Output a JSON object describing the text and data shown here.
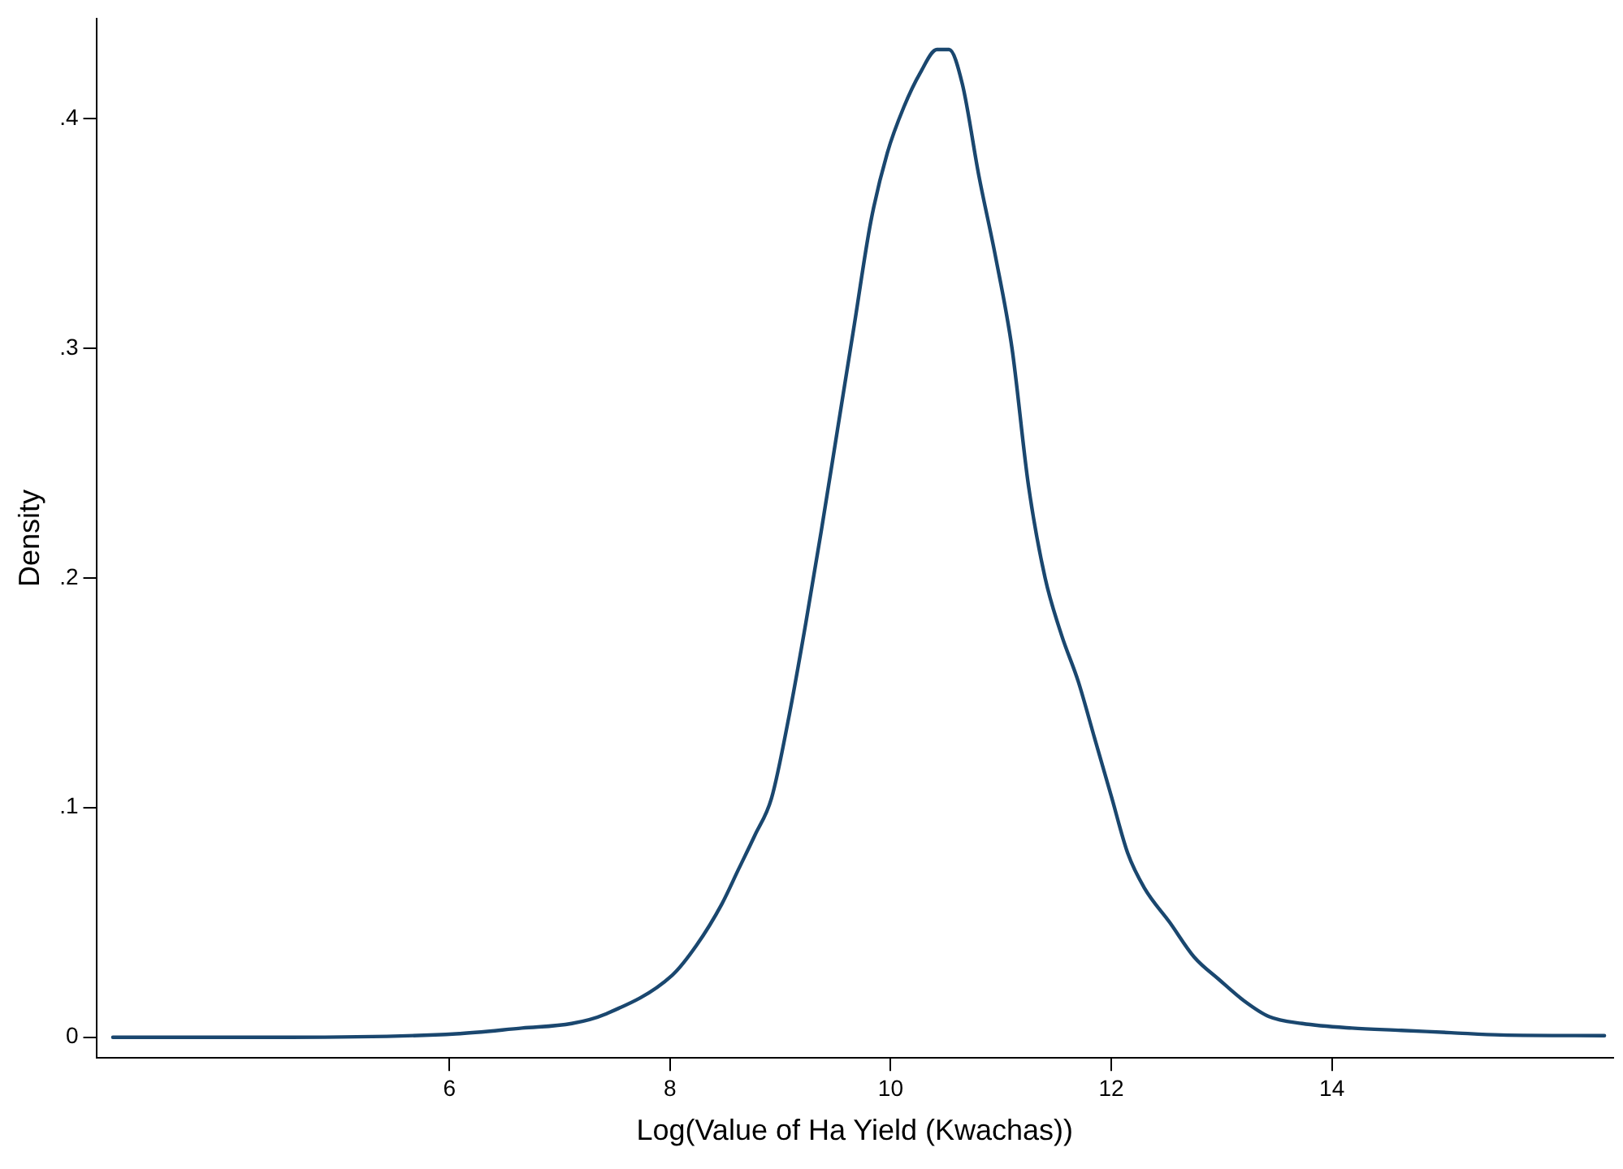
{
  "chart_data": {
    "type": "line",
    "xlabel": "Log(Value of Ha Yield (Kwachas))",
    "ylabel": "Density",
    "xlim": [
      2.8,
      16.55
    ],
    "ylim": [
      -0.009,
      0.4435
    ],
    "xticks": [
      6,
      8,
      10,
      12,
      14
    ],
    "yticks": [
      {
        "value": 0,
        "label": "0"
      },
      {
        "value": 0.1,
        "label": ".1"
      },
      {
        "value": 0.2,
        "label": ".2"
      },
      {
        "value": 0.3,
        "label": ".3"
      },
      {
        "value": 0.4,
        "label": ".4"
      }
    ],
    "grid": false,
    "legend": false,
    "marker": "none",
    "line_style": "solid",
    "series": [
      {
        "color": "#1a476f",
        "x": [
          2.95,
          4.56,
          6.06,
          6.66,
          7.11,
          7.41,
          8.02,
          8.24,
          8.47,
          8.62,
          8.77,
          8.92,
          9.08,
          9.23,
          9.37,
          9.52,
          9.67,
          9.82,
          9.97,
          10.12,
          10.27,
          10.42,
          10.53,
          10.65,
          10.8,
          10.95,
          11.1,
          11.25,
          11.4,
          11.55,
          11.7,
          11.85,
          12.0,
          12.15,
          12.3,
          12.53,
          12.75,
          12.98,
          13.2,
          13.43,
          13.73,
          14.18,
          14.63,
          15.08,
          15.53,
          16.47
        ],
        "values": [
          0,
          0,
          0.0015,
          0.004,
          0.006,
          0.01,
          0.027,
          0.04,
          0.058,
          0.073,
          0.088,
          0.104,
          0.14,
          0.18,
          0.22,
          0.265,
          0.31,
          0.355,
          0.385,
          0.405,
          0.42,
          0.43,
          0.43,
          0.415,
          0.375,
          0.34,
          0.3,
          0.24,
          0.2,
          0.175,
          0.155,
          0.13,
          0.105,
          0.08,
          0.065,
          0.05,
          0.035,
          0.025,
          0.016,
          0.009,
          0.006,
          0.004,
          0.003,
          0.002,
          0.001,
          0.0007
        ]
      }
    ]
  }
}
